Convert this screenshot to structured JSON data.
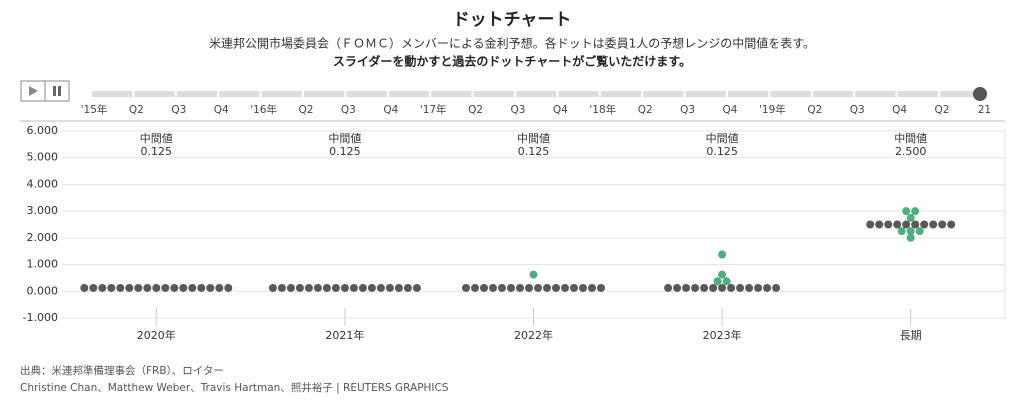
{
  "header": {
    "title": "ドットチャート",
    "subtitle": "米連邦公開市場委員会（ＦＯＭＣ）メンバーによる金利予想。各ドットは委員1人の予想レンジの中間値を表す。",
    "instruction": "スライダーを動かすと過去のドットチャートがご覧いただけます。"
  },
  "timeline": {
    "labels": [
      "'15年",
      "Q2",
      "Q3",
      "Q4",
      "'16年",
      "Q2",
      "Q3",
      "Q4",
      "'17年",
      "Q2",
      "Q3",
      "Q4",
      "'18年",
      "Q2",
      "Q3",
      "Q4",
      "'19年",
      "Q2",
      "Q3",
      "Q4",
      "Q2",
      "21"
    ]
  },
  "chart_data": {
    "type": "dot",
    "median_title": "中間値",
    "color": "#595959",
    "highlight_color": "#4caf7d",
    "ylim": [
      -1,
      6
    ],
    "yticks": [
      {
        "value": 6,
        "label": "6.000"
      },
      {
        "value": 5,
        "label": "5.000"
      },
      {
        "value": 4,
        "label": "4.000"
      },
      {
        "value": 3,
        "label": "3.000"
      },
      {
        "value": 2,
        "label": "2.000"
      },
      {
        "value": 1,
        "label": "1.000"
      },
      {
        "value": 0,
        "label": "0.000"
      },
      {
        "value": -1,
        "label": "-1.000"
      }
    ],
    "grid": true,
    "groups": [
      {
        "category": "2020年",
        "median": 0.125,
        "median_label": "0.125",
        "dots": [
          0.125,
          0.125,
          0.125,
          0.125,
          0.125,
          0.125,
          0.125,
          0.125,
          0.125,
          0.125,
          0.125,
          0.125,
          0.125,
          0.125,
          0.125,
          0.125,
          0.125
        ]
      },
      {
        "category": "2021年",
        "median": 0.125,
        "median_label": "0.125",
        "dots": [
          0.125,
          0.125,
          0.125,
          0.125,
          0.125,
          0.125,
          0.125,
          0.125,
          0.125,
          0.125,
          0.125,
          0.125,
          0.125,
          0.125,
          0.125,
          0.125,
          0.125
        ]
      },
      {
        "category": "2022年",
        "median": 0.125,
        "median_label": "0.125",
        "dots": [
          0.125,
          0.125,
          0.125,
          0.125,
          0.125,
          0.125,
          0.125,
          0.125,
          0.125,
          0.125,
          0.125,
          0.125,
          0.125,
          0.125,
          0.125,
          0.125,
          0.625
        ]
      },
      {
        "category": "2023年",
        "median": 0.125,
        "median_label": "0.125",
        "dots": [
          0.125,
          0.125,
          0.125,
          0.125,
          0.125,
          0.125,
          0.125,
          0.125,
          0.125,
          0.125,
          0.125,
          0.125,
          0.125,
          0.375,
          0.375,
          0.625,
          1.375
        ]
      },
      {
        "category": "長期",
        "median": 2.5,
        "median_label": "2.500",
        "dots": [
          2.5,
          2.5,
          2.5,
          2.5,
          2.5,
          2.5,
          2.5,
          2.5,
          2.5,
          2.5,
          3.0,
          3.0,
          2.75,
          2.25,
          2.25,
          2.25,
          2.0
        ]
      }
    ]
  },
  "footer": {
    "source": "出典：米連邦準備理事会（FRB）、ロイター",
    "credit": "Christine Chan、Matthew Weber、Travis Hartman、照井裕子 | REUTERS GRAPHICS"
  }
}
